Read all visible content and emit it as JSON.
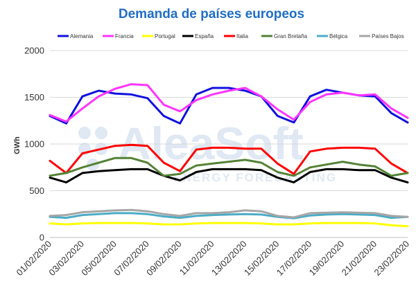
{
  "chart_data": {
    "type": "line",
    "title": "Demanda de países europeos",
    "xlabel": "",
    "ylabel": "GWh",
    "ylim": [
      0,
      2000
    ],
    "yticks": [
      0,
      500,
      1000,
      1500,
      2000
    ],
    "grid": "horizontal",
    "legend_position": "top",
    "watermark": {
      "text": "AleaSoft",
      "subtext": "ENERGY FORECASTING"
    },
    "x": [
      "01/02/2020",
      "02/02/2020",
      "03/02/2020",
      "04/02/2020",
      "05/02/2020",
      "06/02/2020",
      "07/02/2020",
      "08/02/2020",
      "09/02/2020",
      "10/02/2020",
      "11/02/2020",
      "12/02/2020",
      "13/02/2020",
      "14/02/2020",
      "15/02/2020",
      "16/02/2020",
      "17/02/2020",
      "18/02/2020",
      "19/02/2020",
      "20/02/2020",
      "21/02/2020",
      "22/02/2020",
      "23/02/2020"
    ],
    "xticks": [
      "01/02/2020",
      "03/02/2020",
      "05/02/2020",
      "07/02/2020",
      "09/02/2020",
      "11/02/2020",
      "13/02/2020",
      "15/02/2020",
      "17/02/2020",
      "19/02/2020",
      "21/02/2020",
      "23/02/2020"
    ],
    "series": [
      {
        "name": "Alemania",
        "color": "#1010e0",
        "values": [
          1300,
          1220,
          1510,
          1570,
          1540,
          1530,
          1490,
          1300,
          1220,
          1530,
          1600,
          1600,
          1570,
          1510,
          1300,
          1230,
          1510,
          1580,
          1550,
          1520,
          1510,
          1330,
          1230
        ]
      },
      {
        "name": "Francia",
        "color": "#ff33ff",
        "values": [
          1310,
          1240,
          1380,
          1510,
          1590,
          1640,
          1630,
          1420,
          1350,
          1470,
          1530,
          1570,
          1600,
          1510,
          1370,
          1260,
          1450,
          1530,
          1550,
          1520,
          1530,
          1380,
          1280
        ]
      },
      {
        "name": "Portugal",
        "color": "#ffff00",
        "values": [
          150,
          140,
          150,
          155,
          155,
          155,
          150,
          140,
          140,
          150,
          155,
          155,
          155,
          150,
          140,
          140,
          150,
          155,
          155,
          155,
          150,
          130,
          120
        ]
      },
      {
        "name": "España",
        "color": "#000000",
        "values": [
          640,
          590,
          690,
          710,
          720,
          730,
          730,
          660,
          610,
          700,
          730,
          730,
          730,
          720,
          640,
          590,
          700,
          730,
          730,
          720,
          720,
          640,
          590
        ]
      },
      {
        "name": "Italia",
        "color": "#ff0000",
        "values": [
          820,
          690,
          900,
          940,
          980,
          990,
          980,
          800,
          710,
          940,
          960,
          960,
          950,
          950,
          790,
          680,
          920,
          950,
          960,
          960,
          950,
          790,
          690
        ]
      },
      {
        "name": "Gran Bretaña",
        "color": "#548235",
        "values": [
          660,
          690,
          750,
          800,
          850,
          850,
          800,
          660,
          680,
          770,
          790,
          810,
          830,
          800,
          700,
          660,
          750,
          780,
          810,
          780,
          760,
          660,
          690
        ]
      },
      {
        "name": "Bélgica",
        "color": "#4bacc6",
        "values": [
          220,
          210,
          240,
          250,
          260,
          260,
          250,
          225,
          210,
          230,
          240,
          245,
          250,
          245,
          220,
          205,
          235,
          245,
          250,
          245,
          240,
          210,
          220
        ]
      },
      {
        "name": "Países Bajos",
        "color": "#a6a6a6",
        "values": [
          230,
          240,
          270,
          280,
          290,
          295,
          280,
          250,
          230,
          260,
          260,
          270,
          290,
          280,
          230,
          215,
          260,
          265,
          270,
          265,
          260,
          230,
          220
        ]
      }
    ]
  }
}
